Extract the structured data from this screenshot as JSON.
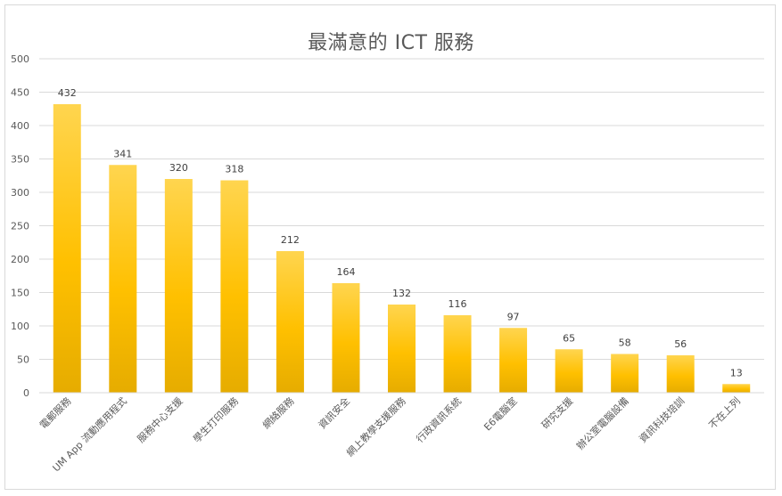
{
  "chart_data": {
    "type": "bar",
    "title": "最滿意的 ICT 服務",
    "categories": [
      "電郵服務",
      "UM App 流動應用程式",
      "服務中心支援",
      "學生打印服務",
      "網絡服務",
      "資訊安全",
      "網上教學支援服務",
      "行政資訊系統",
      "E6電腦室",
      "研究支援",
      "辦公室電腦設備",
      "資訊科技培訓",
      "不在上列"
    ],
    "values": [
      432,
      341,
      320,
      318,
      212,
      164,
      132,
      116,
      97,
      65,
      58,
      56,
      13
    ],
    "ylim": [
      0,
      500
    ],
    "yticks": [
      0,
      50,
      100,
      150,
      200,
      250,
      300,
      350,
      400,
      450,
      500
    ],
    "grid": true,
    "bar_color_top": "#ffd54f",
    "bar_color_mid": "#ffc000",
    "bar_color_bottom": "#e6ac00",
    "gridline_color": "#d9d9d9"
  }
}
